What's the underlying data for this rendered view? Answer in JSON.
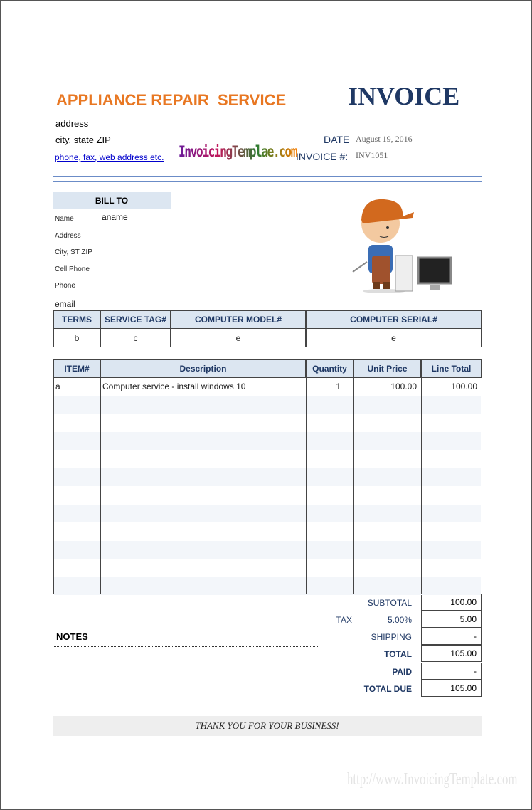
{
  "header": {
    "company": "APPLIANCE REPAIR  SERVICE",
    "title": "INVOICE",
    "address": "address",
    "city": "city, state ZIP",
    "contact": "phone, fax, web address etc.",
    "logo": "InvoicingTemplae.com",
    "date_label": "DATE",
    "date": "August 19, 2016",
    "invoice_label": "INVOICE #:",
    "invoice_no": "INV1051"
  },
  "bill_to": {
    "title": "BILL TO",
    "labels": [
      "Name",
      "Address",
      "City, ST ZIP",
      "Cell Phone",
      "Phone",
      "email"
    ],
    "name": "aname"
  },
  "service_table": {
    "headers": [
      "TERMS",
      "SERVICE TAG#",
      "COMPUTER MODEL#",
      "COMPUTER SERIAL#"
    ],
    "row": [
      "b",
      "c",
      "e",
      "e"
    ]
  },
  "items_table": {
    "headers": [
      "ITEM#",
      "Description",
      "Quantity",
      "Unit Price",
      "Line Total"
    ],
    "rows": [
      [
        "a",
        "Computer service - install windows  10",
        1,
        "100.00",
        "100.00"
      ]
    ]
  },
  "totals": {
    "subtotal_label": "SUBTOTAL",
    "subtotal": "100.00",
    "tax_label": "TAX",
    "tax_rate": "5.00%",
    "tax": "5.00",
    "shipping_label": "SHIPPING",
    "shipping": "-",
    "total_label": "TOTAL",
    "total": "105.00",
    "paid_label": "PAID",
    "paid": "-",
    "due_label": "TOTAL DUE",
    "due": "105.00"
  },
  "notes_title": "NOTES",
  "footer": "THANK YOU FOR YOUR BUSINESS!",
  "watermark": "http://www.InvoicingTemplate.com"
}
